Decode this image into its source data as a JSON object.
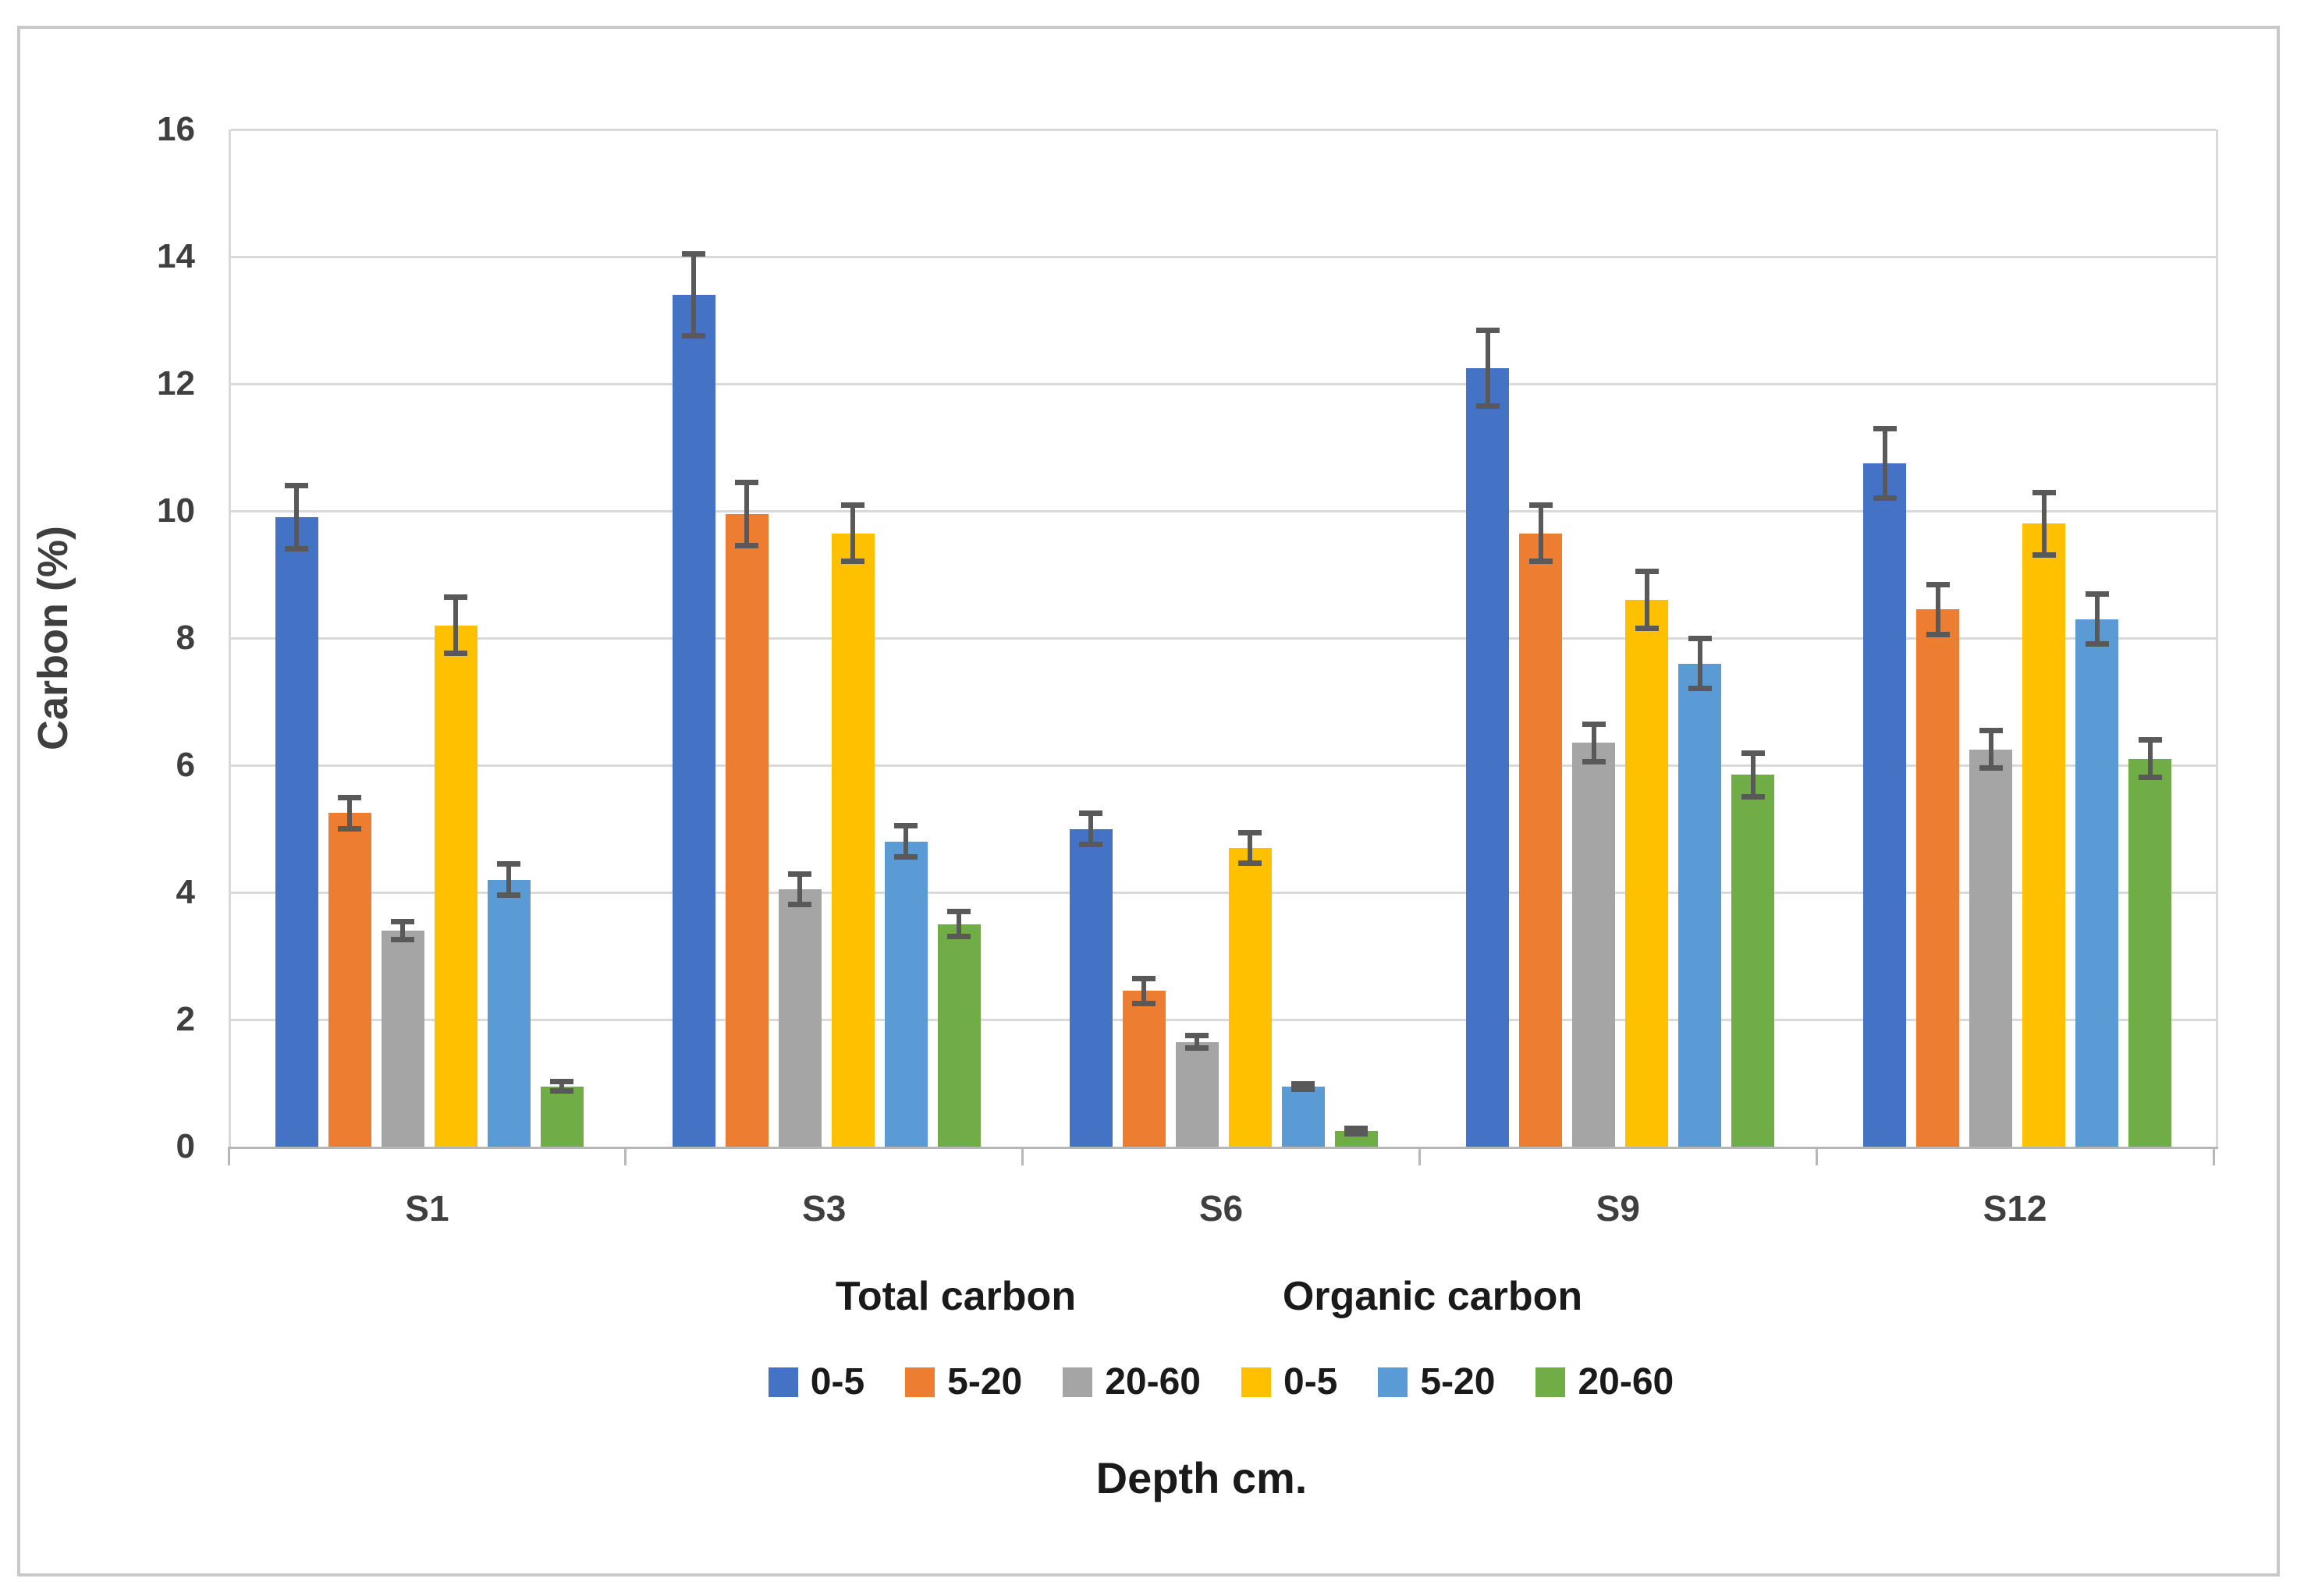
{
  "figure": {
    "background": "#ffffff",
    "border_color": "#c9c9c9"
  },
  "chart_data": {
    "type": "bar",
    "title": "",
    "ylabel": "Carbon  (%)",
    "xlabel": "Depth cm.",
    "categories": [
      "S1",
      "S3",
      "S6",
      "S9",
      "S12"
    ],
    "group_titles": [
      {
        "label": "Total carbon"
      },
      {
        "label": "Organic carbon"
      }
    ],
    "ylim": [
      0,
      16
    ],
    "ytick_step": 2,
    "grid": true,
    "legend_position": "bottom",
    "error_bars": true,
    "colors": {
      "gridline": "#d9d9d9",
      "axis_line": "#b7b7b7",
      "error_bar": "#595959",
      "tick_text": "#3f3f3f",
      "label_text": "#1a1a1a"
    },
    "series": [
      {
        "name": "0-5",
        "carbon_type": "Total carbon",
        "color": "#4472C4",
        "values": [
          9.9,
          13.4,
          5.0,
          12.25,
          10.75
        ],
        "errors": [
          0.5,
          0.65,
          0.25,
          0.6,
          0.55
        ]
      },
      {
        "name": "5-20",
        "carbon_type": "Total carbon",
        "color": "#ED7D31",
        "values": [
          5.25,
          9.95,
          2.45,
          9.65,
          8.45
        ],
        "errors": [
          0.25,
          0.5,
          0.2,
          0.45,
          0.4
        ]
      },
      {
        "name": "20-60",
        "carbon_type": "Total carbon",
        "color": "#A5A5A5",
        "values": [
          3.4,
          4.05,
          1.65,
          6.35,
          6.25
        ],
        "errors": [
          0.15,
          0.25,
          0.1,
          0.3,
          0.3
        ]
      },
      {
        "name": "0-5",
        "carbon_type": "Organic carbon",
        "color": "#FFC000",
        "values": [
          8.2,
          9.65,
          4.7,
          8.6,
          9.8
        ],
        "errors": [
          0.45,
          0.45,
          0.25,
          0.45,
          0.5
        ]
      },
      {
        "name": "5-20",
        "carbon_type": "Organic carbon",
        "color": "#5B9BD5",
        "values": [
          4.2,
          4.8,
          0.95,
          7.6,
          8.3
        ],
        "errors": [
          0.25,
          0.25,
          0.05,
          0.4,
          0.4
        ]
      },
      {
        "name": "20-60",
        "carbon_type": "Organic carbon",
        "color": "#70AD47",
        "values": [
          0.95,
          3.5,
          0.25,
          5.85,
          6.1
        ],
        "errors": [
          0.08,
          0.2,
          0.05,
          0.35,
          0.3
        ]
      }
    ]
  }
}
